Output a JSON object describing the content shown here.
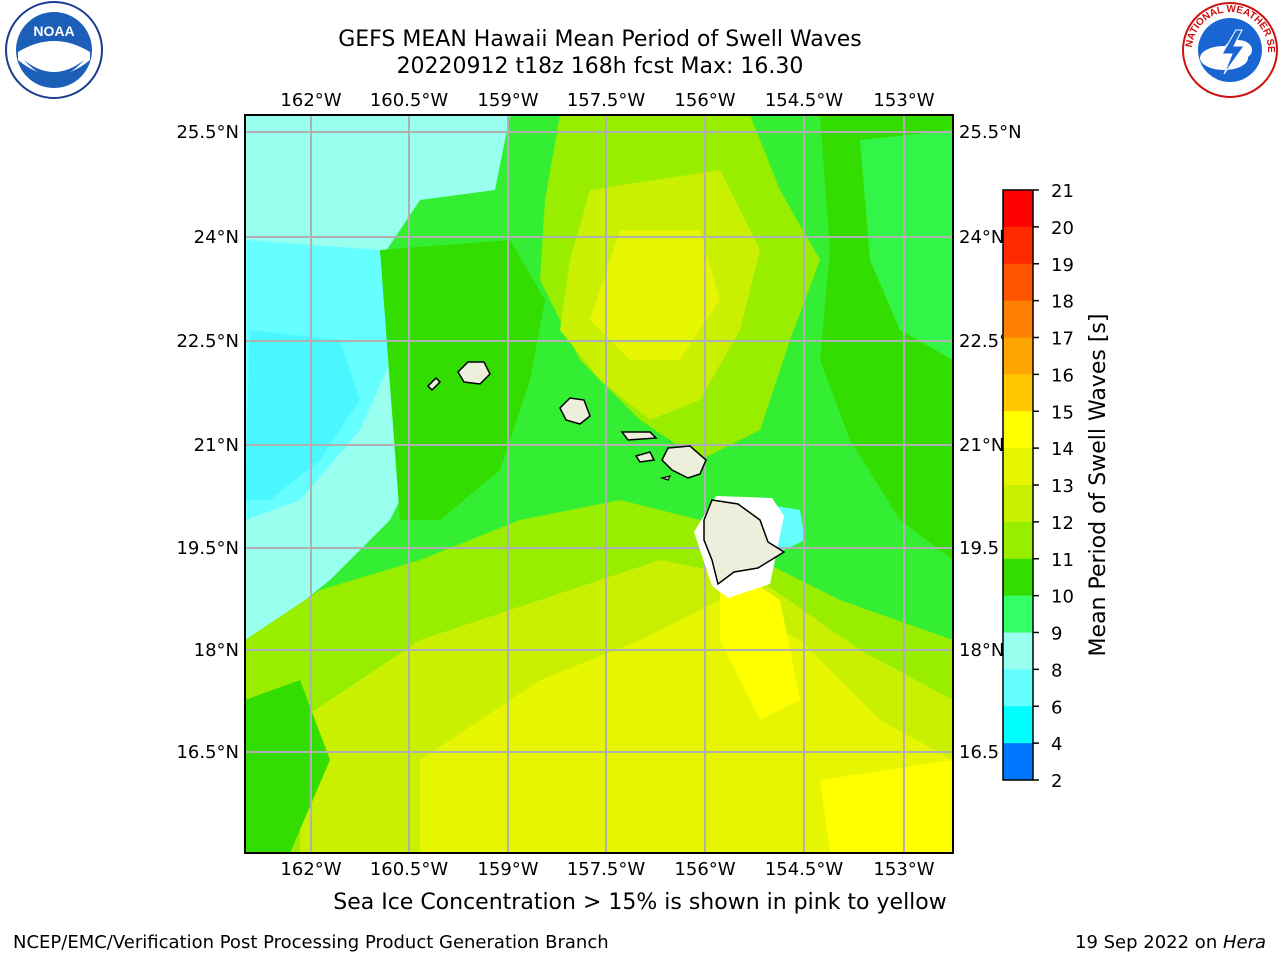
{
  "title": {
    "line1": "GEFS MEAN Hawaii Mean Period of Swell Waves",
    "line2": "20220912 t18z 168h fcst   Max: 16.30"
  },
  "map": {
    "lon_ticks": [
      "162°W",
      "160.5°W",
      "159°W",
      "157.5°W",
      "156°W",
      "154.5°W",
      "153°W"
    ],
    "lat_ticks_left": [
      "25.5°N",
      "24°N",
      "22.5°N",
      "21°N",
      "19.5°N",
      "18°N",
      "16.5°N"
    ],
    "lat_ticks_right": [
      "25.5°N",
      "24°N",
      "22.5°",
      "21°N",
      "19.5",
      "18°N",
      "16.5"
    ]
  },
  "colorbar": {
    "label": "Mean Period of Swell Waves [s]",
    "ticks": [
      "21",
      "20",
      "19",
      "18",
      "17",
      "16",
      "15",
      "14",
      "13",
      "12",
      "11",
      "10",
      "9",
      "8",
      "6",
      "4",
      "2"
    ],
    "colors": [
      "#ff0000",
      "#ff2a00",
      "#ff5500",
      "#ff7f00",
      "#ffa500",
      "#ffc800",
      "#ffff00",
      "#e6f500",
      "#c8f000",
      "#99ee00",
      "#33dd00",
      "#33ff66",
      "#99ffee",
      "#66ffff",
      "#00ffff",
      "#0077ff",
      "#0000ff"
    ]
  },
  "footer": {
    "note": "Sea Ice Concentration > 15% is shown in pink to yellow",
    "credit": "NCEP/EMC/Verification Post Processing Product Generation Branch",
    "date_prefix": "19 Sep 2022 on ",
    "date_host": "Hera"
  },
  "logos": {
    "noaa_text": "NOAA",
    "nws_text": "NATIONAL WEATHER SERVICE"
  }
}
